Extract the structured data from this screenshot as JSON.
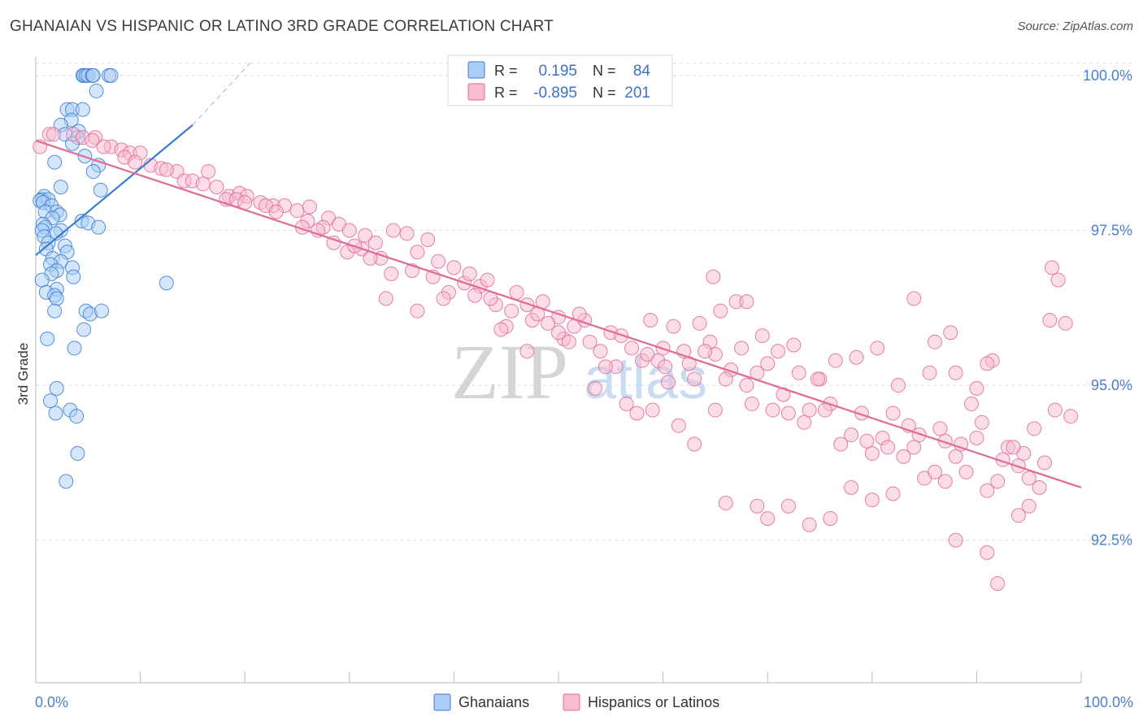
{
  "title": "GHANAIAN VS HISPANIC OR LATINO 3RD GRADE CORRELATION CHART",
  "source": "Source: ZipAtlas.com",
  "watermark": {
    "zip": "ZIP",
    "atlas": "atlas"
  },
  "colors": {
    "blue": "#3a7bd5",
    "blue_fill": "#a9cdf5",
    "pink": "#e06a98",
    "pink_fill": "#f7bcd0",
    "grid": "#dddddd",
    "tick_label": "#4a7fd0"
  },
  "legend_top": [
    {
      "swatch": "blue",
      "r_label": "R =",
      "r_value": "0.195",
      "n_label": "N =",
      "n_value": "84"
    },
    {
      "swatch": "pink",
      "r_label": "R =",
      "r_value": "-0.895",
      "n_label": "N =",
      "n_value": "201"
    }
  ],
  "legend_bottom": [
    "Ghanaians",
    "Hispanics or Latinos"
  ],
  "chart_data": {
    "type": "scatter",
    "xlabel": "",
    "ylabel": "3rd Grade",
    "x_tick_labels": [
      "0.0%",
      "100.0%"
    ],
    "y_tick_labels": [
      "100.0%",
      "97.5%",
      "95.0%",
      "92.5%"
    ],
    "y_ticks": [
      100.0,
      97.5,
      95.0,
      92.5
    ],
    "xlim": [
      0,
      100
    ],
    "ylim": [
      90.2,
      100.3
    ],
    "series": [
      {
        "name": "Ghanaians",
        "color": "blue",
        "trend": {
          "x": [
            0,
            15
          ],
          "y": [
            97.1,
            99.2
          ]
        },
        "trend_dashed": {
          "x": [
            15,
            20.5
          ],
          "y": [
            99.2,
            100.2
          ]
        },
        "points": [
          [
            4.5,
            100.0
          ],
          [
            4.6,
            100.0
          ],
          [
            4.8,
            100.0
          ],
          [
            5.0,
            100.0
          ],
          [
            5.4,
            100.0
          ],
          [
            5.5,
            100.0
          ],
          [
            7.0,
            100.0
          ],
          [
            7.2,
            100.0
          ],
          [
            5.8,
            99.75
          ],
          [
            3.0,
            99.45
          ],
          [
            3.5,
            99.45
          ],
          [
            4.5,
            99.45
          ],
          [
            3.4,
            99.28
          ],
          [
            2.4,
            99.2
          ],
          [
            4.1,
            99.1
          ],
          [
            2.8,
            99.05
          ],
          [
            4.0,
            99.0
          ],
          [
            3.5,
            98.9
          ],
          [
            4.7,
            98.7
          ],
          [
            1.8,
            98.6
          ],
          [
            6.0,
            98.55
          ],
          [
            5.5,
            98.45
          ],
          [
            6.2,
            98.15
          ],
          [
            2.4,
            98.2
          ],
          [
            0.8,
            98.05
          ],
          [
            0.6,
            98.0
          ],
          [
            1.2,
            98.0
          ],
          [
            0.4,
            97.98
          ],
          [
            0.7,
            97.95
          ],
          [
            1.5,
            97.9
          ],
          [
            0.9,
            97.8
          ],
          [
            2.0,
            97.8
          ],
          [
            2.3,
            97.75
          ],
          [
            1.6,
            97.7
          ],
          [
            4.4,
            97.65
          ],
          [
            5.0,
            97.62
          ],
          [
            0.7,
            97.6
          ],
          [
            0.9,
            97.55
          ],
          [
            0.6,
            97.5
          ],
          [
            2.4,
            97.5
          ],
          [
            1.9,
            97.45
          ],
          [
            6.0,
            97.55
          ],
          [
            0.8,
            97.4
          ],
          [
            1.2,
            97.3
          ],
          [
            2.8,
            97.25
          ],
          [
            3.0,
            97.15
          ],
          [
            1.0,
            97.2
          ],
          [
            1.6,
            97.05
          ],
          [
            2.4,
            97.0
          ],
          [
            1.4,
            96.95
          ],
          [
            3.5,
            96.9
          ],
          [
            2.0,
            96.85
          ],
          [
            1.5,
            96.8
          ],
          [
            3.6,
            96.75
          ],
          [
            0.6,
            96.7
          ],
          [
            2.0,
            96.55
          ],
          [
            12.5,
            96.65
          ],
          [
            1.0,
            96.5
          ],
          [
            1.8,
            96.45
          ],
          [
            2.0,
            96.4
          ],
          [
            1.8,
            96.2
          ],
          [
            4.8,
            96.2
          ],
          [
            5.2,
            96.15
          ],
          [
            6.3,
            96.2
          ],
          [
            4.6,
            95.9
          ],
          [
            1.1,
            95.75
          ],
          [
            3.7,
            95.6
          ],
          [
            2.0,
            94.95
          ],
          [
            1.4,
            94.75
          ],
          [
            1.9,
            94.55
          ],
          [
            3.3,
            94.6
          ],
          [
            3.9,
            94.5
          ],
          [
            4.0,
            93.9
          ],
          [
            2.9,
            93.45
          ]
        ]
      },
      {
        "name": "Hispanics or Latinos",
        "color": "pink",
        "trend": {
          "x": [
            0,
            100
          ],
          "y": [
            98.95,
            93.35
          ]
        },
        "points": [
          [
            0.4,
            98.85
          ],
          [
            1.3,
            99.05
          ],
          [
            1.7,
            99.05
          ],
          [
            3.6,
            99.05
          ],
          [
            4.5,
            99.0
          ],
          [
            5.7,
            99.0
          ],
          [
            7.2,
            98.85
          ],
          [
            8.2,
            98.8
          ],
          [
            9.0,
            98.75
          ],
          [
            10.0,
            98.75
          ],
          [
            5.4,
            98.95
          ],
          [
            6.5,
            98.85
          ],
          [
            8.5,
            98.68
          ],
          [
            9.5,
            98.6
          ],
          [
            11.0,
            98.55
          ],
          [
            12.0,
            98.5
          ],
          [
            13.5,
            98.45
          ],
          [
            14.2,
            98.3
          ],
          [
            16.5,
            98.45
          ],
          [
            17.3,
            98.2
          ],
          [
            18.5,
            98.05
          ],
          [
            19.5,
            98.1
          ],
          [
            20.2,
            98.05
          ],
          [
            21.5,
            97.95
          ],
          [
            22.7,
            97.9
          ],
          [
            23.8,
            97.9
          ],
          [
            25.0,
            97.82
          ],
          [
            26.2,
            97.88
          ],
          [
            28.0,
            97.7
          ],
          [
            29.0,
            97.6
          ],
          [
            30.0,
            97.5
          ],
          [
            31.5,
            97.42
          ],
          [
            12.5,
            98.48
          ],
          [
            15.0,
            98.3
          ],
          [
            16.0,
            98.25
          ],
          [
            18.2,
            98.0
          ],
          [
            19.2,
            98.0
          ],
          [
            20.0,
            97.95
          ],
          [
            22.0,
            97.9
          ],
          [
            23.0,
            97.8
          ],
          [
            26.0,
            97.65
          ],
          [
            27.5,
            97.55
          ],
          [
            28.5,
            97.3
          ],
          [
            29.8,
            97.15
          ],
          [
            31.2,
            97.2
          ],
          [
            32.5,
            97.3
          ],
          [
            33.0,
            97.05
          ],
          [
            34.2,
            97.5
          ],
          [
            35.5,
            97.45
          ],
          [
            36.5,
            97.15
          ],
          [
            37.5,
            97.35
          ],
          [
            38.5,
            97.0
          ],
          [
            40.0,
            96.9
          ],
          [
            41.0,
            96.65
          ],
          [
            42.5,
            96.6
          ],
          [
            43.2,
            96.7
          ],
          [
            44.0,
            96.3
          ],
          [
            46.0,
            96.5
          ],
          [
            47.5,
            96.05
          ],
          [
            48.5,
            96.35
          ],
          [
            45.0,
            95.95
          ],
          [
            50.0,
            96.1
          ],
          [
            51.5,
            95.95
          ],
          [
            52.5,
            96.05
          ],
          [
            53.0,
            95.7
          ],
          [
            55.0,
            95.85
          ],
          [
            55.5,
            95.3
          ],
          [
            57.0,
            95.6
          ],
          [
            58.0,
            95.4
          ],
          [
            59.5,
            95.4
          ],
          [
            60.5,
            95.05
          ],
          [
            61.0,
            95.95
          ],
          [
            62.0,
            95.55
          ],
          [
            63.5,
            96.0
          ],
          [
            64.5,
            95.7
          ],
          [
            65.0,
            95.5
          ],
          [
            66.5,
            95.25
          ],
          [
            68.0,
            95.0
          ],
          [
            69.0,
            95.2
          ],
          [
            70.0,
            95.35
          ],
          [
            71.5,
            94.85
          ],
          [
            72.5,
            95.65
          ],
          [
            74.0,
            94.6
          ],
          [
            75.0,
            95.1
          ],
          [
            76.0,
            94.7
          ],
          [
            78.0,
            94.2
          ],
          [
            79.0,
            94.55
          ],
          [
            80.0,
            93.9
          ],
          [
            81.0,
            94.15
          ],
          [
            82.0,
            94.55
          ],
          [
            83.0,
            93.85
          ],
          [
            84.0,
            94.0
          ],
          [
            85.0,
            93.5
          ],
          [
            86.0,
            93.6
          ],
          [
            87.0,
            93.45
          ],
          [
            88.0,
            93.85
          ],
          [
            89.0,
            93.6
          ],
          [
            90.0,
            94.15
          ],
          [
            91.0,
            93.3
          ],
          [
            92.0,
            93.45
          ],
          [
            93.0,
            94.0
          ],
          [
            94.0,
            93.7
          ],
          [
            95.0,
            93.5
          ],
          [
            96.0,
            93.35
          ],
          [
            25.5,
            97.55
          ],
          [
            27.0,
            97.5
          ],
          [
            30.5,
            97.25
          ],
          [
            32.0,
            97.05
          ],
          [
            34.0,
            96.8
          ],
          [
            36.0,
            96.85
          ],
          [
            38.0,
            96.75
          ],
          [
            39.5,
            96.5
          ],
          [
            41.5,
            96.8
          ],
          [
            43.5,
            96.4
          ],
          [
            45.5,
            96.2
          ],
          [
            47.0,
            96.3
          ],
          [
            49.0,
            96.0
          ],
          [
            50.5,
            95.75
          ],
          [
            52.0,
            96.15
          ],
          [
            54.0,
            95.55
          ],
          [
            56.0,
            95.8
          ],
          [
            58.5,
            95.5
          ],
          [
            60.0,
            95.6
          ],
          [
            62.5,
            95.35
          ],
          [
            64.0,
            95.55
          ],
          [
            66.0,
            95.1
          ],
          [
            67.5,
            95.6
          ],
          [
            68.5,
            94.7
          ],
          [
            70.5,
            94.6
          ],
          [
            72.0,
            94.55
          ],
          [
            73.5,
            94.4
          ],
          [
            75.5,
            94.6
          ],
          [
            77.0,
            94.05
          ],
          [
            79.5,
            94.1
          ],
          [
            81.5,
            94.0
          ],
          [
            83.5,
            94.35
          ],
          [
            84.5,
            94.2
          ],
          [
            86.5,
            94.3
          ],
          [
            88.5,
            94.05
          ],
          [
            90.5,
            94.4
          ],
          [
            92.5,
            93.8
          ],
          [
            94.5,
            93.9
          ],
          [
            96.5,
            93.75
          ],
          [
            97.0,
            96.05
          ],
          [
            97.2,
            96.9
          ],
          [
            97.8,
            96.7
          ],
          [
            98.5,
            96.0
          ],
          [
            99.0,
            94.5
          ],
          [
            58.8,
            96.05
          ],
          [
            60.2,
            95.3
          ],
          [
            63.0,
            95.1
          ],
          [
            65.5,
            96.2
          ],
          [
            67.0,
            96.35
          ],
          [
            69.5,
            95.8
          ],
          [
            71.0,
            95.55
          ],
          [
            73.0,
            95.2
          ],
          [
            74.8,
            95.1
          ],
          [
            76.5,
            95.4
          ],
          [
            78.5,
            95.45
          ],
          [
            80.5,
            95.6
          ],
          [
            82.5,
            95.0
          ],
          [
            85.5,
            95.2
          ],
          [
            87.5,
            95.85
          ],
          [
            89.5,
            94.7
          ],
          [
            91.5,
            95.4
          ],
          [
            93.5,
            94.0
          ],
          [
            95.5,
            94.3
          ],
          [
            97.5,
            94.6
          ],
          [
            64.8,
            96.75
          ],
          [
            68.0,
            96.35
          ],
          [
            84.0,
            96.4
          ],
          [
            86.0,
            95.7
          ],
          [
            88.0,
            95.2
          ],
          [
            90.0,
            94.95
          ],
          [
            91.0,
            95.35
          ],
          [
            87.0,
            94.1
          ],
          [
            33.5,
            96.4
          ],
          [
            36.5,
            96.2
          ],
          [
            39.0,
            96.4
          ],
          [
            42.0,
            96.45
          ],
          [
            44.5,
            95.9
          ],
          [
            47.0,
            95.55
          ],
          [
            50.0,
            95.85
          ],
          [
            48.0,
            96.15
          ],
          [
            51.0,
            95.7
          ],
          [
            53.5,
            94.95
          ],
          [
            54.5,
            95.3
          ],
          [
            56.5,
            94.7
          ],
          [
            57.5,
            94.55
          ],
          [
            59.0,
            94.6
          ],
          [
            61.5,
            94.35
          ],
          [
            63.0,
            94.05
          ],
          [
            65.0,
            94.6
          ],
          [
            66.0,
            93.1
          ],
          [
            69.0,
            93.05
          ],
          [
            70.0,
            92.85
          ],
          [
            72.0,
            93.05
          ],
          [
            74.0,
            92.75
          ],
          [
            76.0,
            92.85
          ],
          [
            78.0,
            93.35
          ],
          [
            80.0,
            93.15
          ],
          [
            82.0,
            93.25
          ],
          [
            88.0,
            92.5
          ],
          [
            91.0,
            92.3
          ],
          [
            92.0,
            91.8
          ],
          [
            94.0,
            92.9
          ],
          [
            95.0,
            93.05
          ]
        ]
      }
    ]
  }
}
